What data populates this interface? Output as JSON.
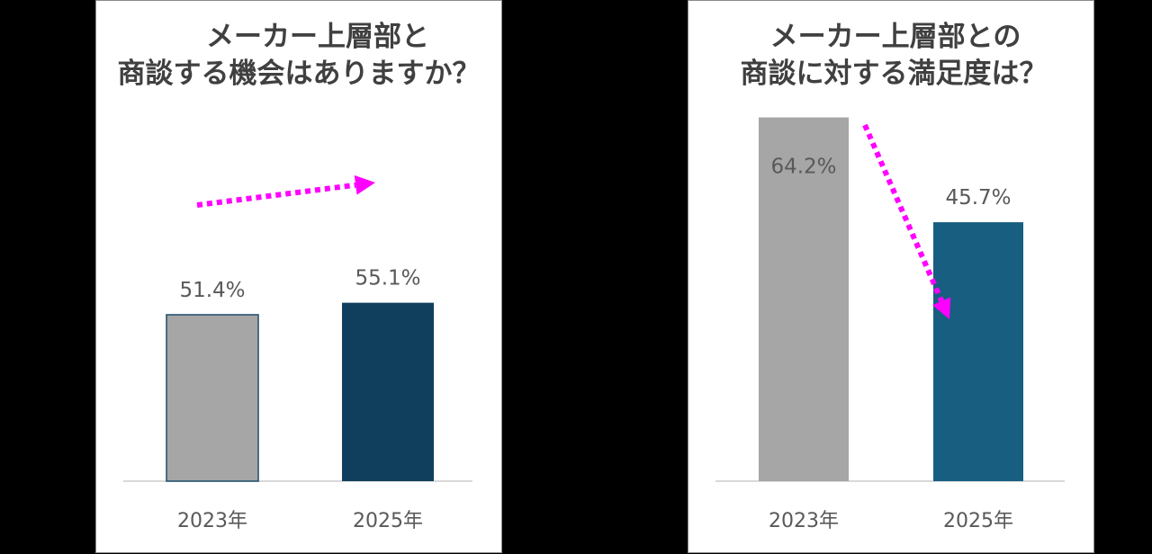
{
  "chart_data": [
    {
      "type": "bar",
      "title_lines": [
        "メーカー上層部と",
        "商談する機会はありますか？"
      ],
      "categories": [
        "2023年",
        "2025年"
      ],
      "values": [
        51.4,
        55.1
      ],
      "value_labels": [
        "51.4%",
        "55.1%"
      ],
      "unit": "%",
      "bar_colors": [
        "#a6a6a6",
        "#0f3f5c"
      ],
      "trend_arrow": {
        "direction": "up",
        "color": "#ff00ff"
      }
    },
    {
      "type": "bar",
      "title_lines": [
        "メーカー上層部との",
        "商談に対する満足度は？"
      ],
      "categories": [
        "2023年",
        "2025年"
      ],
      "values": [
        64.2,
        45.7
      ],
      "value_labels": [
        "64.2%",
        "45.7%"
      ],
      "unit": "%",
      "bar_colors": [
        "#a6a6a6",
        "#175e80"
      ],
      "trend_arrow": {
        "direction": "down",
        "color": "#ff00ff"
      }
    }
  ]
}
